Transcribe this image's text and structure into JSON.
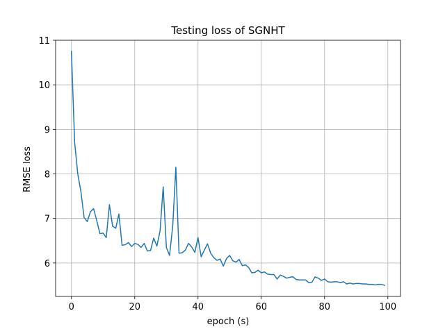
{
  "chart_data": {
    "type": "line",
    "title": "Testing loss of SGNHT",
    "xlabel": "epoch (s)",
    "ylabel": "RMSE loss",
    "xlim": [
      -5,
      104
    ],
    "ylim": [
      5.25,
      11
    ],
    "xticks": [
      0,
      20,
      40,
      60,
      80,
      100
    ],
    "yticks": [
      6,
      7,
      8,
      9,
      10,
      11
    ],
    "grid": true,
    "series": [
      {
        "color": "#1f77b4",
        "x": [
          0,
          1,
          2,
          3,
          4,
          5,
          6,
          7,
          8,
          9,
          10,
          11,
          12,
          13,
          14,
          15,
          16,
          17,
          18,
          19,
          20,
          21,
          22,
          23,
          24,
          25,
          26,
          27,
          28,
          29,
          30,
          31,
          32,
          33,
          34,
          35,
          36,
          37,
          38,
          39,
          40,
          41,
          42,
          43,
          44,
          45,
          46,
          47,
          48,
          49,
          50,
          51,
          52,
          53,
          54,
          55,
          56,
          57,
          58,
          59,
          60,
          61,
          62,
          63,
          64,
          65,
          66,
          67,
          68,
          69,
          70,
          71,
          72,
          73,
          74,
          75,
          76,
          77,
          78,
          79,
          80,
          81,
          82,
          83,
          84,
          85,
          86,
          87,
          88,
          89,
          90,
          91,
          92,
          93,
          94,
          95,
          96,
          97,
          98,
          99
        ],
        "values": [
          10.75,
          8.72,
          8.0,
          7.6,
          7.02,
          6.93,
          7.15,
          7.22,
          6.95,
          6.66,
          6.67,
          6.57,
          7.31,
          6.83,
          6.78,
          7.1,
          6.4,
          6.41,
          6.46,
          6.37,
          6.44,
          6.42,
          6.35,
          6.44,
          6.27,
          6.28,
          6.56,
          6.38,
          6.72,
          7.71,
          6.35,
          6.17,
          6.82,
          8.15,
          6.22,
          6.23,
          6.29,
          6.44,
          6.36,
          6.24,
          6.57,
          6.14,
          6.29,
          6.43,
          6.22,
          6.12,
          6.06,
          6.09,
          5.93,
          6.1,
          6.17,
          6.05,
          6.02,
          6.08,
          5.94,
          5.96,
          5.9,
          5.78,
          5.79,
          5.84,
          5.78,
          5.8,
          5.75,
          5.74,
          5.74,
          5.64,
          5.73,
          5.7,
          5.66,
          5.68,
          5.69,
          5.63,
          5.62,
          5.62,
          5.62,
          5.56,
          5.57,
          5.69,
          5.66,
          5.61,
          5.64,
          5.58,
          5.57,
          5.58,
          5.58,
          5.56,
          5.58,
          5.53,
          5.55,
          5.53,
          5.54,
          5.54,
          5.53,
          5.53,
          5.52,
          5.52,
          5.51,
          5.52,
          5.52,
          5.5
        ]
      }
    ]
  }
}
